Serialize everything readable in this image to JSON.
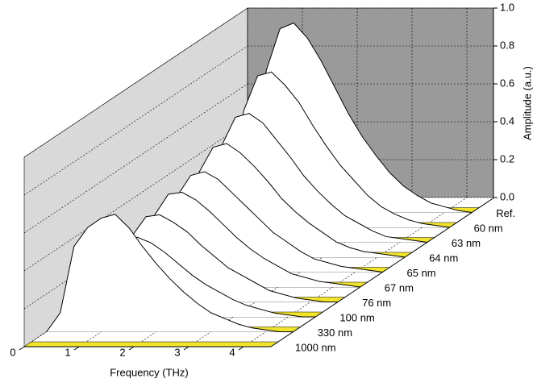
{
  "chart_data": {
    "type": "waterfall",
    "xlabel": "Frequency (THz)",
    "ylabel": "Amplitude (a.u.)",
    "x": [
      0,
      0.25,
      0.5,
      0.75,
      1,
      1.25,
      1.5,
      1.75,
      2,
      2.25,
      2.5,
      2.75,
      3,
      3.25,
      3.5,
      3.75,
      4,
      4.25,
      4.5
    ],
    "xlim": [
      0,
      4.5
    ],
    "xticks": [
      0,
      1,
      2,
      3,
      4
    ],
    "ylim": [
      0,
      1
    ],
    "yticks": [
      {
        "value": 0,
        "label": "0.0"
      },
      0.2,
      0.4,
      0.6,
      0.8,
      {
        "value": 1,
        "label": "1.0"
      }
    ],
    "grid": true,
    "line_color": "#000000",
    "baseline_color": "#f2e42c",
    "series": [
      {
        "name": "Ref.",
        "values": [
          0,
          0.05,
          0.35,
          0.75,
          0.97,
          1.0,
          0.92,
          0.8,
          0.66,
          0.52,
          0.4,
          0.3,
          0.21,
          0.14,
          0.09,
          0.05,
          0.03,
          0.01,
          0
        ]
      },
      {
        "name": "60 nm",
        "values": [
          0,
          0.04,
          0.29,
          0.62,
          0.8,
          0.82,
          0.75,
          0.66,
          0.54,
          0.43,
          0.33,
          0.25,
          0.17,
          0.11,
          0.07,
          0.04,
          0.02,
          0.01,
          0
        ]
      },
      {
        "name": "63 nm",
        "values": [
          0,
          0.03,
          0.24,
          0.51,
          0.66,
          0.68,
          0.63,
          0.54,
          0.45,
          0.35,
          0.27,
          0.2,
          0.14,
          0.1,
          0.06,
          0.03,
          0.02,
          0.01,
          0
        ]
      },
      {
        "name": "64 nm",
        "values": [
          0,
          0.03,
          0.21,
          0.45,
          0.58,
          0.6,
          0.55,
          0.48,
          0.4,
          0.31,
          0.24,
          0.18,
          0.13,
          0.08,
          0.05,
          0.03,
          0.02,
          0.01,
          0
        ]
      },
      {
        "name": "65 nm",
        "values": [
          0,
          0.03,
          0.19,
          0.4,
          0.51,
          0.53,
          0.49,
          0.42,
          0.35,
          0.28,
          0.21,
          0.16,
          0.11,
          0.07,
          0.05,
          0.03,
          0.02,
          0.01,
          0
        ]
      },
      {
        "name": "67 nm",
        "values": [
          0,
          0.03,
          0.18,
          0.38,
          0.49,
          0.5,
          0.46,
          0.4,
          0.33,
          0.26,
          0.2,
          0.15,
          0.11,
          0.07,
          0.05,
          0.03,
          0.02,
          0.01,
          0
        ]
      },
      {
        "name": "76 nm",
        "values": [
          0,
          0.02,
          0.16,
          0.35,
          0.45,
          0.46,
          0.42,
          0.37,
          0.3,
          0.24,
          0.18,
          0.14,
          0.1,
          0.06,
          0.04,
          0.02,
          0.01,
          0,
          0
        ]
      },
      {
        "name": "100 nm",
        "values": [
          0,
          0.02,
          0.15,
          0.32,
          0.41,
          0.42,
          0.39,
          0.34,
          0.28,
          0.22,
          0.17,
          0.13,
          0.09,
          0.06,
          0.04,
          0.02,
          0.01,
          0,
          0
        ]
      },
      {
        "name": "330 nm",
        "values": [
          0,
          0.1,
          0.45,
          0.55,
          0.6,
          0.62,
          0.55,
          0.45,
          0.36,
          0.28,
          0.21,
          0.15,
          0.1,
          0.07,
          0.04,
          0.02,
          0.01,
          0,
          0
        ]
      },
      {
        "name": "1000 nm",
        "values": [
          0,
          0,
          0,
          0,
          0,
          0,
          0,
          0,
          0,
          0,
          0,
          0,
          0,
          0,
          0,
          0,
          0,
          0,
          0
        ]
      }
    ]
  }
}
